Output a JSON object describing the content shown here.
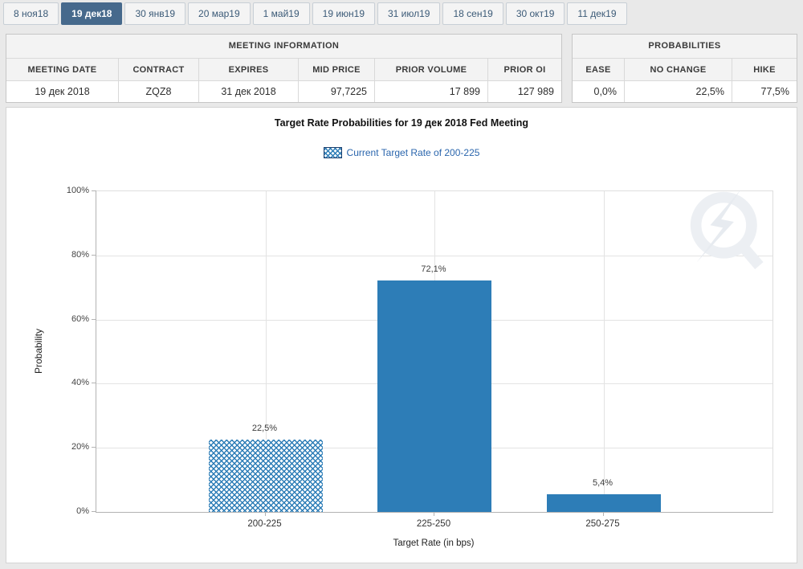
{
  "tabs": {
    "items": [
      {
        "label": "8 ноя18",
        "active": false
      },
      {
        "label": "19 дек18",
        "active": true
      },
      {
        "label": "30 янв19",
        "active": false
      },
      {
        "label": "20 мар19",
        "active": false
      },
      {
        "label": "1 май19",
        "active": false
      },
      {
        "label": "19 июн19",
        "active": false
      },
      {
        "label": "31 июл19",
        "active": false
      },
      {
        "label": "18 сен19",
        "active": false
      },
      {
        "label": "30 окт19",
        "active": false
      },
      {
        "label": "11 дек19",
        "active": false
      }
    ]
  },
  "meeting_information": {
    "title": "MEETING INFORMATION",
    "columns": [
      "MEETING DATE",
      "CONTRACT",
      "EXPIRES",
      "MID PRICE",
      "PRIOR VOLUME",
      "PRIOR OI"
    ],
    "values": [
      "19 дек 2018",
      "ZQZ8",
      "31 дек 2018",
      "97,7225",
      "17 899",
      "127 989"
    ]
  },
  "probabilities": {
    "title": "PROBABILITIES",
    "columns": [
      "EASE",
      "NO CHANGE",
      "HIKE"
    ],
    "values": [
      "0,0%",
      "22,5%",
      "77,5%"
    ]
  },
  "chart_data": {
    "type": "bar",
    "title": "Target Rate Probabilities for 19 дек 2018 Fed Meeting",
    "legend_label": "Current Target Rate of 200-225",
    "legend_position": "top",
    "categories": [
      "200-225",
      "225-250",
      "250-275"
    ],
    "values": [
      22.5,
      72.1,
      5.4
    ],
    "value_labels": [
      "22,5%",
      "72,1%",
      "5,4%"
    ],
    "hatched_category_index": 0,
    "xlabel": "Target Rate (in bps)",
    "ylabel": "Probability",
    "ylim": [
      0,
      100
    ],
    "yticks": [
      "0%",
      "20%",
      "40%",
      "60%",
      "80%",
      "100%"
    ],
    "grid": true,
    "watermark_icon": "quandl-logo"
  },
  "colors": {
    "bar_blue": "#2d7db7",
    "selected_tab": "#46698c",
    "legend_text_blue": "#2b66ad"
  }
}
